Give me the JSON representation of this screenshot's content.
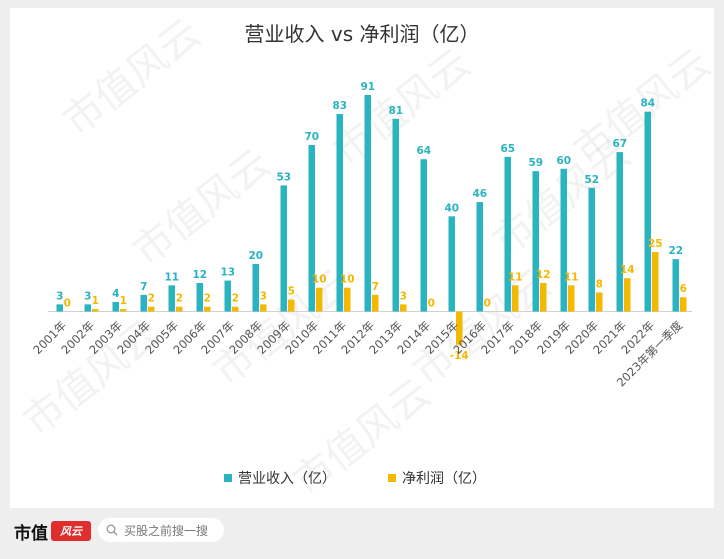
{
  "chart_data": {
    "type": "bar",
    "title": "营业收入 vs 净利润（亿）",
    "categories": [
      "2001年",
      "2002年",
      "2003年",
      "2004年",
      "2005年",
      "2006年",
      "2007年",
      "2008年",
      "2009年",
      "2010年",
      "2011年",
      "2012年",
      "2013年",
      "2014年",
      "2015年",
      "2016年",
      "2017年",
      "2018年",
      "2019年",
      "2020年",
      "2021年",
      "2022年",
      "2023年第一季度"
    ],
    "series": [
      {
        "name": "营业收入（亿）",
        "color": "#2ab3c0",
        "values": [
          3,
          3,
          4,
          7,
          11,
          12,
          13,
          20,
          53,
          70,
          83,
          91,
          81,
          64,
          40,
          46,
          65,
          59,
          60,
          52,
          67,
          84,
          22
        ]
      },
      {
        "name": "净利润（亿）",
        "color": "#f5b800",
        "values": [
          0,
          1,
          1,
          2,
          2,
          2,
          2,
          3,
          5,
          10,
          10,
          7,
          3,
          0,
          -14,
          0,
          11,
          12,
          11,
          8,
          14,
          25,
          6
        ]
      }
    ],
    "ylim": [
      -14,
      91
    ],
    "grid": false,
    "legend": "bottom",
    "data_labels": true
  },
  "watermark": "市值风云",
  "footer": {
    "brand": "市值",
    "stamp": "风云",
    "search_text": "买股之前搜一搜"
  }
}
